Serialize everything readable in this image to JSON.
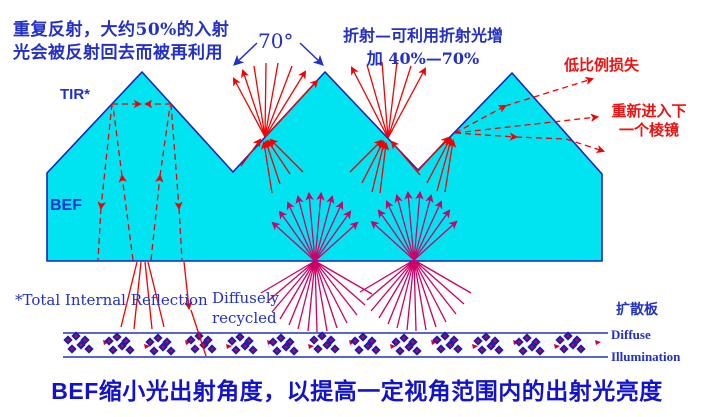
{
  "labels": {
    "recycle_note": "重复反射，大约50%的入射\n光会被反射回去而被再利用",
    "angle": "70°",
    "refraction_note": "折射—可利用折射光增\n加 40%—70%",
    "low_loss": "低比例损失",
    "reenter": "重新进入下\n一个棱镜",
    "tir": "TIR*",
    "bef": "BEF",
    "tir_footnote": "*Total Internal Reflection",
    "diffusely_recycled": "Diffusely\nrecycled",
    "diffuser_plate": "扩散板",
    "diffuse_illumination": "Diffuse\nIllumination",
    "title": "BEF缩小光出射角度，以提高一定视角范围内的出射光亮度"
  },
  "colors": {
    "film_fill": "#00e4f2",
    "film_outline": "#2020bb",
    "ray_red": "#f40000",
    "ray_magenta": "#cc0066",
    "text_blue": "#2230c8",
    "text_red": "#ee1111",
    "particle_navy": "#1b1bb8",
    "particle_dot": "#d40033"
  }
}
